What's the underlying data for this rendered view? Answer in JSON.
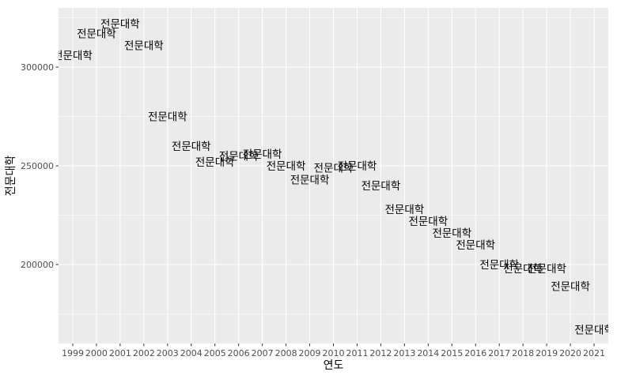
{
  "chart_data": {
    "type": "scatter",
    "xlabel": "연도",
    "ylabel": "전문대학",
    "x": [
      1999,
      2000,
      2001,
      2002,
      2003,
      2004,
      2005,
      2006,
      2007,
      2008,
      2009,
      2010,
      2011,
      2012,
      2013,
      2014,
      2015,
      2016,
      2017,
      2018,
      2019,
      2020,
      2021
    ],
    "series": [
      {
        "point_label": "전문대학",
        "values": [
          306000,
          317000,
          322000,
          311000,
          275000,
          260000,
          252000,
          255000,
          256000,
          250000,
          243000,
          249000,
          250000,
          240000,
          228000,
          222000,
          216000,
          210000,
          200000,
          198000,
          198000,
          189000,
          167000
        ]
      }
    ],
    "xticks": [
      "1999",
      "2000",
      "2001",
      "2002",
      "2003",
      "2004",
      "2005",
      "2006",
      "2007",
      "2008",
      "2009",
      "2010",
      "2011",
      "2012",
      "2013",
      "2014",
      "2015",
      "2016",
      "2017",
      "2018",
      "2019",
      "2020",
      "2021"
    ],
    "yticks": [
      200000,
      250000,
      300000
    ],
    "ylim": [
      160000,
      330000
    ],
    "xlim": [
      1998.4,
      2021.6
    ],
    "grid": true,
    "legend": "none",
    "colors": {
      "panel": "#ebebeb",
      "grid_major": "#ffffff",
      "text": "#000000",
      "tick_text": "#4d4d4d"
    }
  }
}
